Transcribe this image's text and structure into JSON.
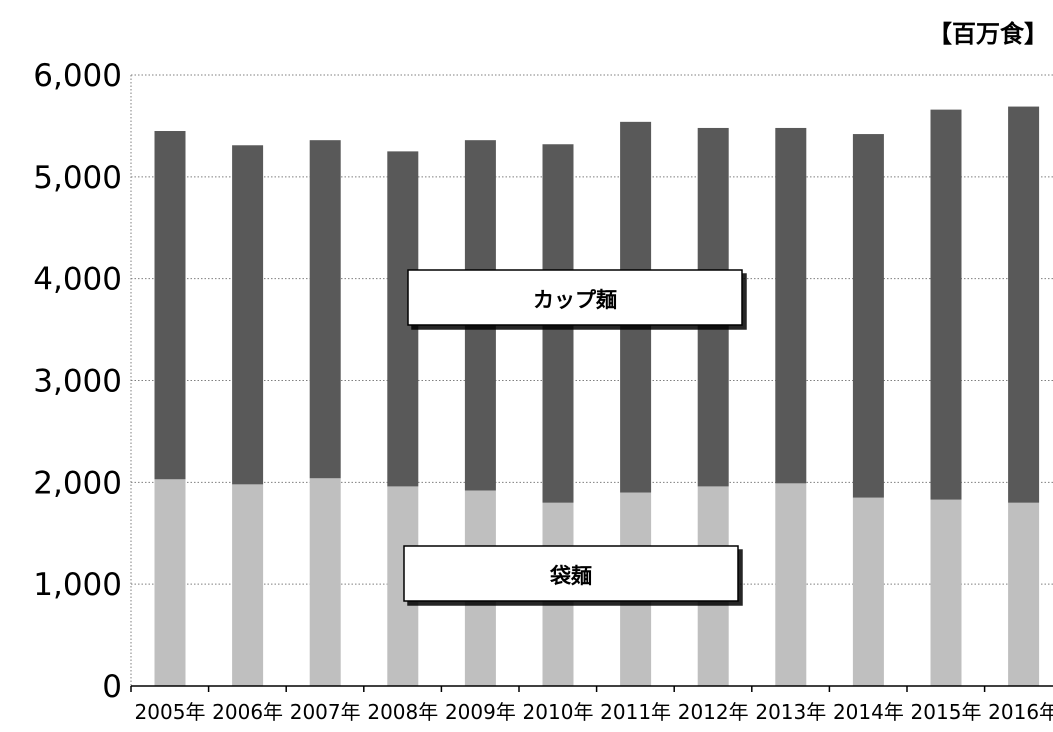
{
  "chart_data": {
    "type": "bar",
    "stacked": true,
    "unit_label": "【百万食】",
    "categories": [
      "2005年",
      "2006年",
      "2007年",
      "2008年",
      "2009年",
      "2010年",
      "2011年",
      "2012年",
      "2013年",
      "2014年",
      "2015年",
      "2016年"
    ],
    "series": [
      {
        "name": "袋麺",
        "color": "#bfbfbf",
        "values": [
          2030,
          1980,
          2040,
          1960,
          1920,
          1800,
          1900,
          1960,
          1990,
          1850,
          1830,
          1800
        ]
      },
      {
        "name": "カップ麺",
        "color": "#595959",
        "values": [
          3420,
          3330,
          3320,
          3290,
          3440,
          3520,
          3640,
          3520,
          3490,
          3570,
          3830,
          3890
        ]
      }
    ],
    "ylim": [
      0,
      6000
    ],
    "yticks": [
      "0",
      "1,000",
      "2,000",
      "3,000",
      "4,000",
      "5,000",
      "6,000"
    ],
    "grid": "dotted horizontal",
    "annotations": [
      "カップ麺",
      "袋麺"
    ]
  }
}
